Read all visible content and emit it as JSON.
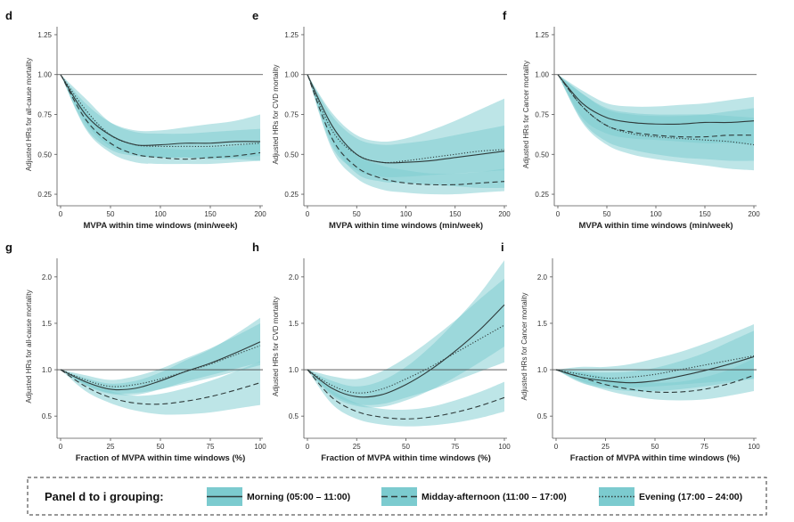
{
  "colors": {
    "band": "#7ccbcf",
    "band_overlap": "#3fa6ab",
    "line": "#2f3b3b",
    "ref_line": "#444444",
    "axis": "#555555"
  },
  "chart_data": [
    {
      "panel": "d",
      "type": "line",
      "xlabel": "MVPA within time windows (min/week)",
      "ylabel": "Adjusted HRs for all-cause mortality",
      "xlim": [
        0,
        200
      ],
      "ylim": [
        0.2,
        1.3
      ],
      "xticks": [
        0,
        50,
        100,
        150,
        200
      ],
      "xtick_labels": [
        "0",
        "50",
        "100",
        "150",
        "200"
      ],
      "yticks": [
        0.25,
        0.5,
        0.75,
        1.0,
        1.25
      ],
      "ytick_labels": [
        "0.25",
        "0.50",
        "0.75",
        "1.00",
        "1.25"
      ],
      "ref_y": 1.0,
      "x": [
        0,
        25,
        50,
        75,
        100,
        125,
        150,
        175,
        200
      ],
      "series": [
        {
          "name": "Morning (05:00 – 11:00)",
          "style": "solid",
          "values": [
            1.0,
            0.75,
            0.62,
            0.56,
            0.56,
            0.57,
            0.57,
            0.58,
            0.58
          ],
          "lower": [
            1.0,
            0.67,
            0.53,
            0.49,
            0.48,
            0.48,
            0.47,
            0.47,
            0.46
          ],
          "upper": [
            1.0,
            0.82,
            0.7,
            0.65,
            0.65,
            0.67,
            0.69,
            0.71,
            0.75
          ]
        },
        {
          "name": "Midday-afternoon (11:00 – 17:00)",
          "style": "dashed",
          "values": [
            1.0,
            0.72,
            0.57,
            0.5,
            0.48,
            0.47,
            0.48,
            0.49,
            0.51
          ],
          "lower": [
            1.0,
            0.66,
            0.51,
            0.45,
            0.44,
            0.44,
            0.44,
            0.45,
            0.46
          ],
          "upper": [
            1.0,
            0.78,
            0.63,
            0.56,
            0.54,
            0.53,
            0.54,
            0.55,
            0.58
          ]
        },
        {
          "name": "Evening (17:00 – 24:00)",
          "style": "dotted",
          "values": [
            1.0,
            0.78,
            0.62,
            0.56,
            0.55,
            0.55,
            0.55,
            0.56,
            0.57
          ],
          "lower": [
            1.0,
            0.7,
            0.55,
            0.5,
            0.48,
            0.48,
            0.48,
            0.48,
            0.49
          ],
          "upper": [
            1.0,
            0.85,
            0.7,
            0.64,
            0.63,
            0.63,
            0.64,
            0.65,
            0.66
          ]
        }
      ]
    },
    {
      "panel": "e",
      "type": "line",
      "xlabel": "MVPA within time windows (min/week)",
      "ylabel": "Adjusted HRs for CVD mortality",
      "xlim": [
        0,
        200
      ],
      "ylim": [
        0.2,
        1.3
      ],
      "xticks": [
        0,
        50,
        100,
        150,
        200
      ],
      "xtick_labels": [
        "0",
        "50",
        "100",
        "150",
        "200"
      ],
      "yticks": [
        0.25,
        0.5,
        0.75,
        1.0,
        1.25
      ],
      "ytick_labels": [
        "0.25",
        "0.50",
        "0.75",
        "1.00",
        "1.25"
      ],
      "ref_y": 1.0,
      "x": [
        0,
        25,
        50,
        75,
        100,
        125,
        150,
        175,
        200
      ],
      "series": [
        {
          "name": "Morning (05:00 – 11:00)",
          "style": "solid",
          "values": [
            1.0,
            0.68,
            0.5,
            0.45,
            0.45,
            0.46,
            0.48,
            0.5,
            0.52
          ],
          "lower": [
            1.0,
            0.58,
            0.38,
            0.33,
            0.32,
            0.31,
            0.3,
            0.29,
            0.29
          ],
          "upper": [
            1.0,
            0.76,
            0.62,
            0.58,
            0.6,
            0.65,
            0.71,
            0.78,
            0.85
          ]
        },
        {
          "name": "Midday-afternoon (11:00 – 17:00)",
          "style": "dashed",
          "values": [
            1.0,
            0.6,
            0.42,
            0.35,
            0.32,
            0.31,
            0.31,
            0.32,
            0.33
          ],
          "lower": [
            1.0,
            0.53,
            0.35,
            0.28,
            0.26,
            0.25,
            0.25,
            0.26,
            0.27
          ],
          "upper": [
            1.0,
            0.68,
            0.5,
            0.43,
            0.4,
            0.38,
            0.38,
            0.39,
            0.41
          ]
        },
        {
          "name": "Evening (17:00 – 24:00)",
          "style": "dotted",
          "values": [
            1.0,
            0.65,
            0.5,
            0.45,
            0.46,
            0.48,
            0.5,
            0.52,
            0.53
          ],
          "lower": [
            1.0,
            0.55,
            0.4,
            0.36,
            0.36,
            0.37,
            0.38,
            0.39,
            0.4
          ],
          "upper": [
            1.0,
            0.74,
            0.6,
            0.56,
            0.57,
            0.59,
            0.62,
            0.65,
            0.68
          ]
        }
      ]
    },
    {
      "panel": "f",
      "type": "line",
      "xlabel": "MVPA within time windows (min/week)",
      "ylabel": "Adjusted HRs for Cancer mortality",
      "xlim": [
        0,
        200
      ],
      "ylim": [
        0.2,
        1.3
      ],
      "xticks": [
        0,
        50,
        100,
        150,
        200
      ],
      "xtick_labels": [
        "0",
        "50",
        "100",
        "150",
        "200"
      ],
      "yticks": [
        0.25,
        0.5,
        0.75,
        1.0,
        1.25
      ],
      "ytick_labels": [
        "0.25",
        "0.50",
        "0.75",
        "1.00",
        "1.25"
      ],
      "ref_y": 1.0,
      "x": [
        0,
        25,
        50,
        75,
        100,
        125,
        150,
        175,
        200
      ],
      "series": [
        {
          "name": "Morning (05:00 – 11:00)",
          "style": "solid",
          "values": [
            1.0,
            0.82,
            0.73,
            0.7,
            0.69,
            0.69,
            0.7,
            0.7,
            0.71
          ],
          "lower": [
            1.0,
            0.73,
            0.63,
            0.6,
            0.59,
            0.58,
            0.57,
            0.57,
            0.56
          ],
          "upper": [
            1.0,
            0.9,
            0.82,
            0.8,
            0.8,
            0.81,
            0.82,
            0.84,
            0.86
          ]
        },
        {
          "name": "Midday-afternoon (11:00 – 17:00)",
          "style": "dashed",
          "values": [
            1.0,
            0.8,
            0.68,
            0.64,
            0.62,
            0.61,
            0.61,
            0.62,
            0.62
          ],
          "lower": [
            1.0,
            0.71,
            0.58,
            0.53,
            0.5,
            0.48,
            0.47,
            0.46,
            0.46
          ],
          "upper": [
            1.0,
            0.88,
            0.78,
            0.75,
            0.74,
            0.74,
            0.75,
            0.77,
            0.79
          ]
        },
        {
          "name": "Evening (17:00 – 24:00)",
          "style": "dotted",
          "values": [
            1.0,
            0.8,
            0.68,
            0.63,
            0.61,
            0.6,
            0.59,
            0.58,
            0.56
          ],
          "lower": [
            1.0,
            0.7,
            0.56,
            0.5,
            0.47,
            0.45,
            0.43,
            0.41,
            0.4
          ],
          "upper": [
            1.0,
            0.88,
            0.79,
            0.76,
            0.75,
            0.75,
            0.75,
            0.74,
            0.73
          ]
        }
      ]
    },
    {
      "panel": "g",
      "type": "line",
      "xlabel": "Fraction of MVPA within time windows (%)",
      "ylabel": "Adjusted HRs for all-cause mortality",
      "xlim": [
        0,
        100
      ],
      "ylim": [
        0.3,
        2.2
      ],
      "xticks": [
        0,
        25,
        50,
        75,
        100
      ],
      "xtick_labels": [
        "0",
        "25",
        "50",
        "75",
        "100"
      ],
      "yticks": [
        0.5,
        1.0,
        1.5,
        2.0
      ],
      "ytick_labels": [
        "0.5",
        "1.0",
        "1.5",
        "2.0"
      ],
      "ref_y": 1.0,
      "x": [
        0,
        12.5,
        25,
        37.5,
        50,
        62.5,
        75,
        87.5,
        100
      ],
      "series": [
        {
          "name": "Morning (05:00 – 11:00)",
          "style": "solid",
          "values": [
            1.0,
            0.87,
            0.79,
            0.8,
            0.88,
            0.98,
            1.07,
            1.18,
            1.3
          ],
          "lower": [
            1.0,
            0.83,
            0.74,
            0.73,
            0.79,
            0.87,
            0.94,
            1.01,
            1.08
          ],
          "upper": [
            1.0,
            0.91,
            0.85,
            0.88,
            0.97,
            1.1,
            1.22,
            1.38,
            1.56
          ]
        },
        {
          "name": "Midday-afternoon (11:00 – 17:00)",
          "style": "dashed",
          "values": [
            1.0,
            0.82,
            0.7,
            0.64,
            0.63,
            0.66,
            0.71,
            0.78,
            0.86
          ],
          "lower": [
            1.0,
            0.77,
            0.64,
            0.56,
            0.52,
            0.52,
            0.54,
            0.58,
            0.62
          ],
          "upper": [
            1.0,
            0.87,
            0.77,
            0.72,
            0.74,
            0.8,
            0.88,
            0.98,
            1.09
          ]
        },
        {
          "name": "Evening (17:00 – 24:00)",
          "style": "dotted",
          "values": [
            1.0,
            0.89,
            0.82,
            0.84,
            0.9,
            0.98,
            1.06,
            1.16,
            1.26
          ],
          "lower": [
            1.0,
            0.84,
            0.75,
            0.75,
            0.79,
            0.85,
            0.91,
            0.98,
            1.05
          ],
          "upper": [
            1.0,
            0.94,
            0.89,
            0.93,
            1.01,
            1.12,
            1.23,
            1.36,
            1.5
          ]
        }
      ]
    },
    {
      "panel": "h",
      "type": "line",
      "xlabel": "Fraction of MVPA within time windows (%)",
      "ylabel": "Adjusted HRs for CVD mortality",
      "xlim": [
        0,
        100
      ],
      "ylim": [
        0.3,
        2.2
      ],
      "xticks": [
        0,
        25,
        50,
        75,
        100
      ],
      "xtick_labels": [
        "0",
        "25",
        "50",
        "75",
        "100"
      ],
      "yticks": [
        0.5,
        1.0,
        1.5,
        2.0
      ],
      "ytick_labels": [
        "0.5",
        "1.0",
        "1.5",
        "2.0"
      ],
      "ref_y": 1.0,
      "x": [
        0,
        12.5,
        25,
        37.5,
        50,
        62.5,
        75,
        87.5,
        100
      ],
      "series": [
        {
          "name": "Morning (05:00 – 11:00)",
          "style": "solid",
          "values": [
            1.0,
            0.8,
            0.71,
            0.73,
            0.84,
            1.0,
            1.2,
            1.43,
            1.7
          ],
          "lower": [
            1.0,
            0.72,
            0.61,
            0.6,
            0.67,
            0.78,
            0.92,
            1.08,
            1.25
          ],
          "upper": [
            1.0,
            0.88,
            0.82,
            0.88,
            1.03,
            1.25,
            1.52,
            1.82,
            2.18
          ]
        },
        {
          "name": "Midday-afternoon (11:00 – 17:00)",
          "style": "dashed",
          "values": [
            1.0,
            0.7,
            0.55,
            0.49,
            0.47,
            0.49,
            0.54,
            0.61,
            0.7
          ],
          "lower": [
            1.0,
            0.63,
            0.47,
            0.41,
            0.39,
            0.4,
            0.43,
            0.48,
            0.55
          ],
          "upper": [
            1.0,
            0.78,
            0.64,
            0.58,
            0.57,
            0.6,
            0.67,
            0.76,
            0.87
          ]
        },
        {
          "name": "Evening (17:00 – 24:00)",
          "style": "dotted",
          "values": [
            1.0,
            0.83,
            0.75,
            0.79,
            0.9,
            1.03,
            1.18,
            1.33,
            1.48
          ],
          "lower": [
            1.0,
            0.74,
            0.63,
            0.63,
            0.7,
            0.78,
            0.88,
            0.98,
            1.08
          ],
          "upper": [
            1.0,
            0.93,
            0.9,
            0.98,
            1.13,
            1.32,
            1.53,
            1.76,
            1.98
          ]
        }
      ]
    },
    {
      "panel": "i",
      "type": "line",
      "xlabel": "Fraction of MVPA within time windows (%)",
      "ylabel": "Adjusted HRs for Cancer mortality",
      "xlim": [
        0,
        100
      ],
      "ylim": [
        0.3,
        2.2
      ],
      "xticks": [
        0,
        25,
        50,
        75,
        100
      ],
      "xtick_labels": [
        "0",
        "25",
        "50",
        "75",
        "100"
      ],
      "yticks": [
        0.5,
        1.0,
        1.5,
        2.0
      ],
      "ytick_labels": [
        "0.5",
        "1.0",
        "1.5",
        "2.0"
      ],
      "ref_y": 1.0,
      "x": [
        0,
        12.5,
        25,
        37.5,
        50,
        62.5,
        75,
        87.5,
        100
      ],
      "series": [
        {
          "name": "Morning (05:00 – 11:00)",
          "style": "solid",
          "values": [
            1.0,
            0.92,
            0.88,
            0.86,
            0.88,
            0.93,
            0.99,
            1.06,
            1.14
          ],
          "lower": [
            1.0,
            0.86,
            0.8,
            0.77,
            0.77,
            0.79,
            0.82,
            0.86,
            0.91
          ],
          "upper": [
            1.0,
            0.98,
            0.97,
            0.98,
            1.02,
            1.09,
            1.18,
            1.3,
            1.42
          ]
        },
        {
          "name": "Midday-afternoon (11:00 – 17:00)",
          "style": "dashed",
          "values": [
            1.0,
            0.92,
            0.84,
            0.79,
            0.76,
            0.76,
            0.79,
            0.85,
            0.94
          ],
          "lower": [
            1.0,
            0.87,
            0.78,
            0.72,
            0.68,
            0.67,
            0.68,
            0.72,
            0.77
          ],
          "upper": [
            1.0,
            0.97,
            0.92,
            0.88,
            0.86,
            0.87,
            0.92,
            1.0,
            1.12
          ]
        },
        {
          "name": "Evening (17:00 – 24:00)",
          "style": "dotted",
          "values": [
            1.0,
            0.95,
            0.91,
            0.92,
            0.95,
            1.0,
            1.05,
            1.1,
            1.15
          ],
          "lower": [
            1.0,
            0.88,
            0.82,
            0.81,
            0.82,
            0.84,
            0.86,
            0.88,
            0.9
          ],
          "upper": [
            1.0,
            1.03,
            1.03,
            1.06,
            1.12,
            1.19,
            1.28,
            1.38,
            1.49
          ]
        }
      ]
    }
  ],
  "legend": {
    "title": "Panel d to i grouping:",
    "placement": "bottom",
    "items": [
      {
        "label": "Morning (05:00 – 11:00)",
        "style": "solid"
      },
      {
        "label": "Midday-afternoon (11:00 – 17:00)",
        "style": "dashed"
      },
      {
        "label": "Evening (17:00 – 24:00)",
        "style": "dotted"
      }
    ]
  }
}
